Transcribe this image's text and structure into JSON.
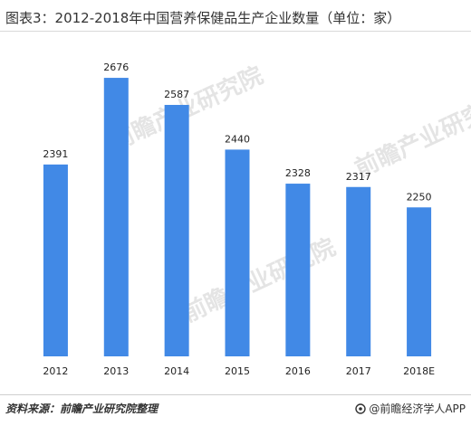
{
  "title": "图表3：2012-2018年中国营养保健品生产企业数量（单位：家）",
  "chart_data": {
    "type": "bar",
    "categories": [
      "2012",
      "2013",
      "2014",
      "2015",
      "2016",
      "2017",
      "2018E"
    ],
    "values": [
      2391,
      2676,
      2587,
      2440,
      2328,
      2317,
      2250
    ],
    "bar_color": "#4189e6",
    "data_labels": true,
    "grid": false,
    "ylim": [
      1760,
      2700
    ]
  },
  "footer": {
    "source": "资料来源：前瞻产业研究院整理",
    "brand": "@前瞻经济学人APP"
  },
  "watermark": {
    "text": "前瞻产业研究院"
  }
}
